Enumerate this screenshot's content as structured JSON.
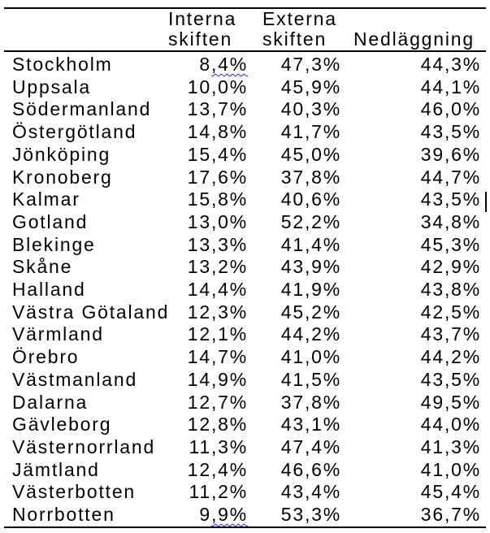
{
  "colors": {
    "text": "#000000",
    "rule": "#000000",
    "wavy_underline": "#2222ee",
    "background": "#ffffff"
  },
  "table": {
    "headers": {
      "col1_line1": "Interna",
      "col1_line2": "skiften",
      "col2_line1": "Externa",
      "col2_line2": "skiften",
      "col3": "Nedläggning"
    },
    "rows": [
      {
        "region": "Stockholm",
        "interna": "8",
        "interna_wavy": ",4%",
        "externa": "47,3%",
        "nedlaggning": "44,3%"
      },
      {
        "region": "Uppsala",
        "interna": "10,0%",
        "interna_wavy": "",
        "externa": "45,9%",
        "nedlaggning": "44,1%"
      },
      {
        "region": "Södermanland",
        "interna": "13,7%",
        "interna_wavy": "",
        "externa": "40,3%",
        "nedlaggning": "46,0%"
      },
      {
        "region": "Östergötland",
        "interna": "14,8%",
        "interna_wavy": "",
        "externa": "41,7%",
        "nedlaggning": "43,5%"
      },
      {
        "region": "Jönköping",
        "interna": "15,4%",
        "interna_wavy": "",
        "externa": "45,0%",
        "nedlaggning": "39,6%"
      },
      {
        "region": "Kronoberg",
        "interna": "17,6%",
        "interna_wavy": "",
        "externa": "37,8%",
        "nedlaggning": "44,7%"
      },
      {
        "region": "Kalmar",
        "interna": "15,8%",
        "interna_wavy": "",
        "externa": "40,6%",
        "nedlaggning": "43,5%"
      },
      {
        "region": "Gotland",
        "interna": "13,0%",
        "interna_wavy": "",
        "externa": "52,2%",
        "nedlaggning": "34,8%"
      },
      {
        "region": "Blekinge",
        "interna": "13,3%",
        "interna_wavy": "",
        "externa": "41,4%",
        "nedlaggning": "45,3%"
      },
      {
        "region": "Skåne",
        "interna": "13,2%",
        "interna_wavy": "",
        "externa": "43,9%",
        "nedlaggning": "42,9%"
      },
      {
        "region": "Halland",
        "interna": "14,4%",
        "interna_wavy": "",
        "externa": "41,9%",
        "nedlaggning": "43,8%"
      },
      {
        "region": "Västra Götaland",
        "interna": "12,3%",
        "interna_wavy": "",
        "externa": "45,2%",
        "nedlaggning": "42,5%"
      },
      {
        "region": "Värmland",
        "interna": "12,1%",
        "interna_wavy": "",
        "externa": "44,2%",
        "nedlaggning": "43,7%"
      },
      {
        "region": "Örebro",
        "interna": "14,7%",
        "interna_wavy": "",
        "externa": "41,0%",
        "nedlaggning": "44,2%"
      },
      {
        "region": "Västmanland",
        "interna": "14,9%",
        "interna_wavy": "",
        "externa": "41,5%",
        "nedlaggning": "43,5%"
      },
      {
        "region": "Dalarna",
        "interna": "12,7%",
        "interna_wavy": "",
        "externa": "37,8%",
        "nedlaggning": "49,5%"
      },
      {
        "region": "Gävleborg",
        "interna": "12,8%",
        "interna_wavy": "",
        "externa": "43,1%",
        "nedlaggning": "44,0%"
      },
      {
        "region": "Västernorrland",
        "interna": "11,3%",
        "interna_wavy": "",
        "externa": "47,4%",
        "nedlaggning": "41,3%"
      },
      {
        "region": "Jämtland",
        "interna": "12,4%",
        "interna_wavy": "",
        "externa": "46,6%",
        "nedlaggning": "41,0%"
      },
      {
        "region": "Västerbotten",
        "interna": "11,2%",
        "interna_wavy": "",
        "externa": "43,4%",
        "nedlaggning": "45,4%"
      },
      {
        "region": "Norrbotten",
        "interna": "9",
        "interna_wavy": ",9%",
        "externa": "53,3%",
        "nedlaggning": "36,7%"
      }
    ]
  }
}
